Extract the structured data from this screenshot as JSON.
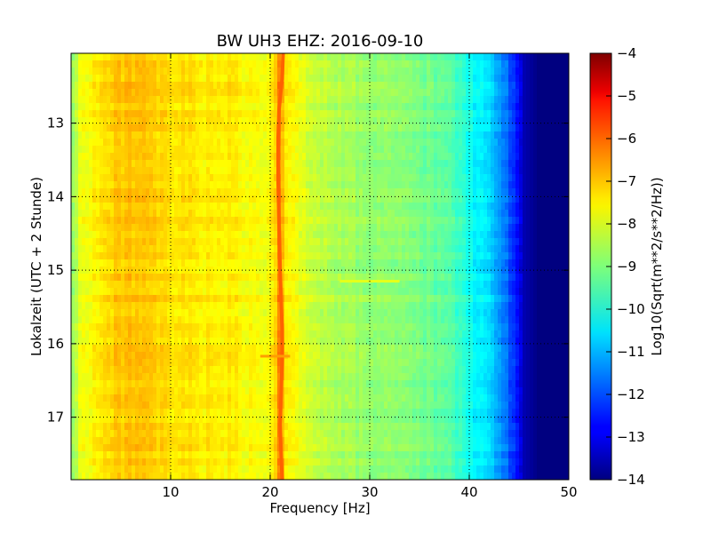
{
  "chart_data": {
    "type": "heatmap",
    "title": "BW UH3 EHZ: 2016-09-10",
    "xlabel": "Frequency [Hz]",
    "ylabel": "Lokalzeit (UTC + 2 Stunde)",
    "colorbar_label": "Log10(Sqrt(m**2/s**2/Hz))",
    "xlim": [
      0,
      50
    ],
    "ylim": [
      17.85,
      12.05
    ],
    "clim": [
      -14,
      -4
    ],
    "colormap": "jet",
    "grid": true,
    "x_ticks": [
      "10",
      "20",
      "30",
      "40",
      "50"
    ],
    "y_ticks": [
      "13",
      "14",
      "15",
      "16",
      "17"
    ],
    "colorbar_ticks": [
      "-4",
      "-5",
      "-6",
      "-7",
      "-8",
      "-9",
      "-10",
      "-11",
      "-12",
      "-13",
      "-14"
    ],
    "spectrum_profile": {
      "frequency_hz": [
        0,
        1,
        3,
        5,
        6,
        8,
        10,
        12,
        14,
        16,
        18,
        19.5,
        20.5,
        21,
        21.5,
        23,
        25,
        27,
        30,
        32,
        35,
        38,
        39.5,
        40.5,
        42,
        43.5,
        44.5,
        45.5,
        47,
        50
      ],
      "log10_amplitude": [
        -8.9,
        -7.9,
        -7.5,
        -7.2,
        -7.1,
        -7.3,
        -7.5,
        -7.5,
        -7.6,
        -7.6,
        -7.8,
        -7.9,
        -7.5,
        -6.3,
        -7.6,
        -8.0,
        -8.3,
        -8.6,
        -8.8,
        -8.8,
        -9.1,
        -9.4,
        -9.8,
        -10.3,
        -10.6,
        -11.5,
        -12.3,
        -13.5,
        -14,
        -14
      ]
    },
    "peak_line": {
      "frequency_hz": [
        21.3,
        21.2,
        20.9,
        20.8,
        20.8,
        20.9,
        21.0,
        21.1,
        21.2,
        21.2,
        21.1,
        21.0,
        21.1,
        21.2
      ],
      "time_h": [
        12.05,
        12.4,
        12.8,
        13.2,
        13.8,
        14.4,
        15.0,
        15.4,
        15.8,
        16.2,
        16.7,
        17.1,
        17.5,
        17.85
      ],
      "log10_amplitude": -6.2
    },
    "transient_features": [
      {
        "time_h": 15.15,
        "frequency_hz": [
          27,
          33
        ],
        "log10_amplitude": -8.0
      },
      {
        "time_h": 16.17,
        "frequency_hz": [
          19,
          22
        ],
        "log10_amplitude": -6.8
      }
    ]
  }
}
